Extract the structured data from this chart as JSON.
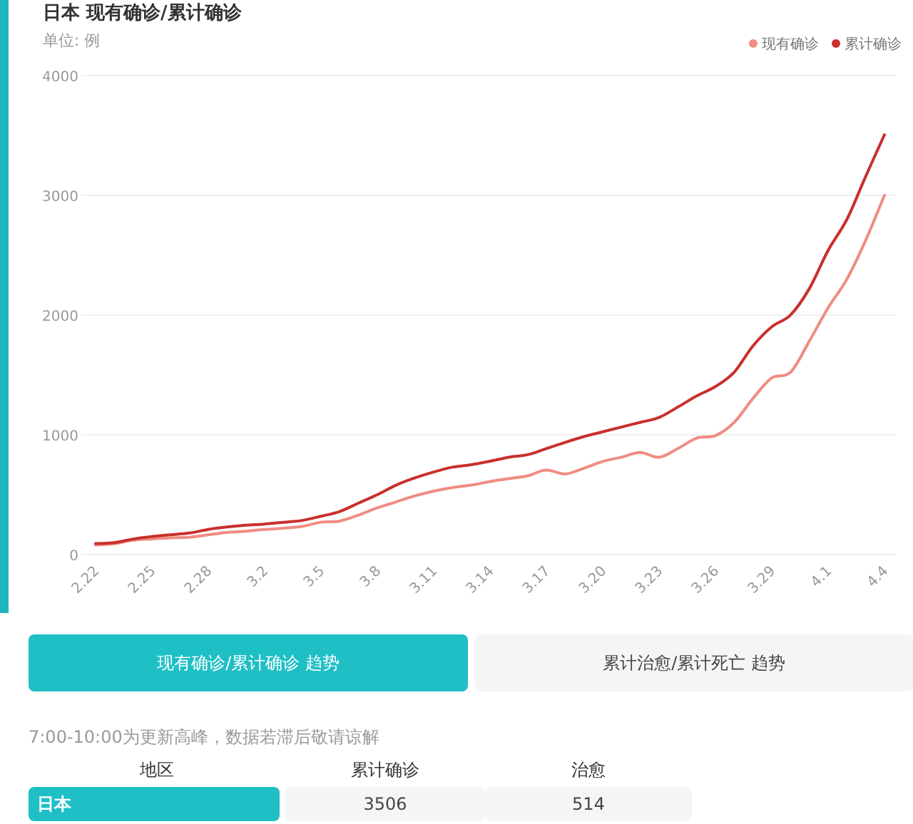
{
  "chart_data": {
    "type": "line",
    "title": "日本 现有确诊/累计确诊",
    "ylabel": "单位: 例",
    "categories": [
      "2.22",
      null,
      null,
      "2.25",
      null,
      null,
      "2.28",
      null,
      null,
      "3.2",
      null,
      null,
      "3.5",
      null,
      null,
      "3.8",
      null,
      null,
      "3.11",
      null,
      null,
      "3.14",
      null,
      null,
      "3.17",
      null,
      null,
      "3.20",
      null,
      null,
      "3.23",
      null,
      null,
      "3.26",
      null,
      null,
      "3.29",
      null,
      null,
      "4.1",
      null,
      null,
      "4.4"
    ],
    "series": [
      {
        "name": "现有确诊",
        "color": "#f08c82",
        "values": [
          80,
          90,
          120,
          130,
          140,
          145,
          165,
          185,
          195,
          210,
          220,
          235,
          270,
          280,
          330,
          390,
          440,
          490,
          530,
          560,
          580,
          610,
          634,
          658,
          706,
          673,
          721,
          778,
          813,
          853,
          813,
          885,
          973,
          993,
          1104,
          1304,
          1475,
          1523,
          1782,
          2061,
          2300,
          2624,
          3000
        ]
      },
      {
        "name": "累计确诊",
        "color": "#c9302c",
        "values": [
          92,
          100,
          130,
          150,
          165,
          180,
          210,
          230,
          245,
          255,
          270,
          285,
          320,
          360,
          430,
          500,
          580,
          640,
          690,
          730,
          750,
          780,
          813,
          834,
          885,
          937,
          985,
          1025,
          1065,
          1104,
          1145,
          1232,
          1324,
          1403,
          1523,
          1743,
          1902,
          2001,
          2221,
          2540,
          2799,
          3158,
          3506
        ]
      }
    ],
    "ylim": [
      0,
      4000
    ],
    "yticks": [
      0,
      1000,
      2000,
      3000,
      4000
    ],
    "grid": "y",
    "legend": "top right",
    "line_style": "solid",
    "annotations": [
      "现有确诊/累计确诊 趋势",
      "累计治愈/累计死亡 趋势",
      "7:00-10:00为更新高峰，数据若滞后敬请谅解",
      "地区",
      "累计确诊",
      "治愈",
      "日本",
      "3506",
      "514"
    ]
  }
}
